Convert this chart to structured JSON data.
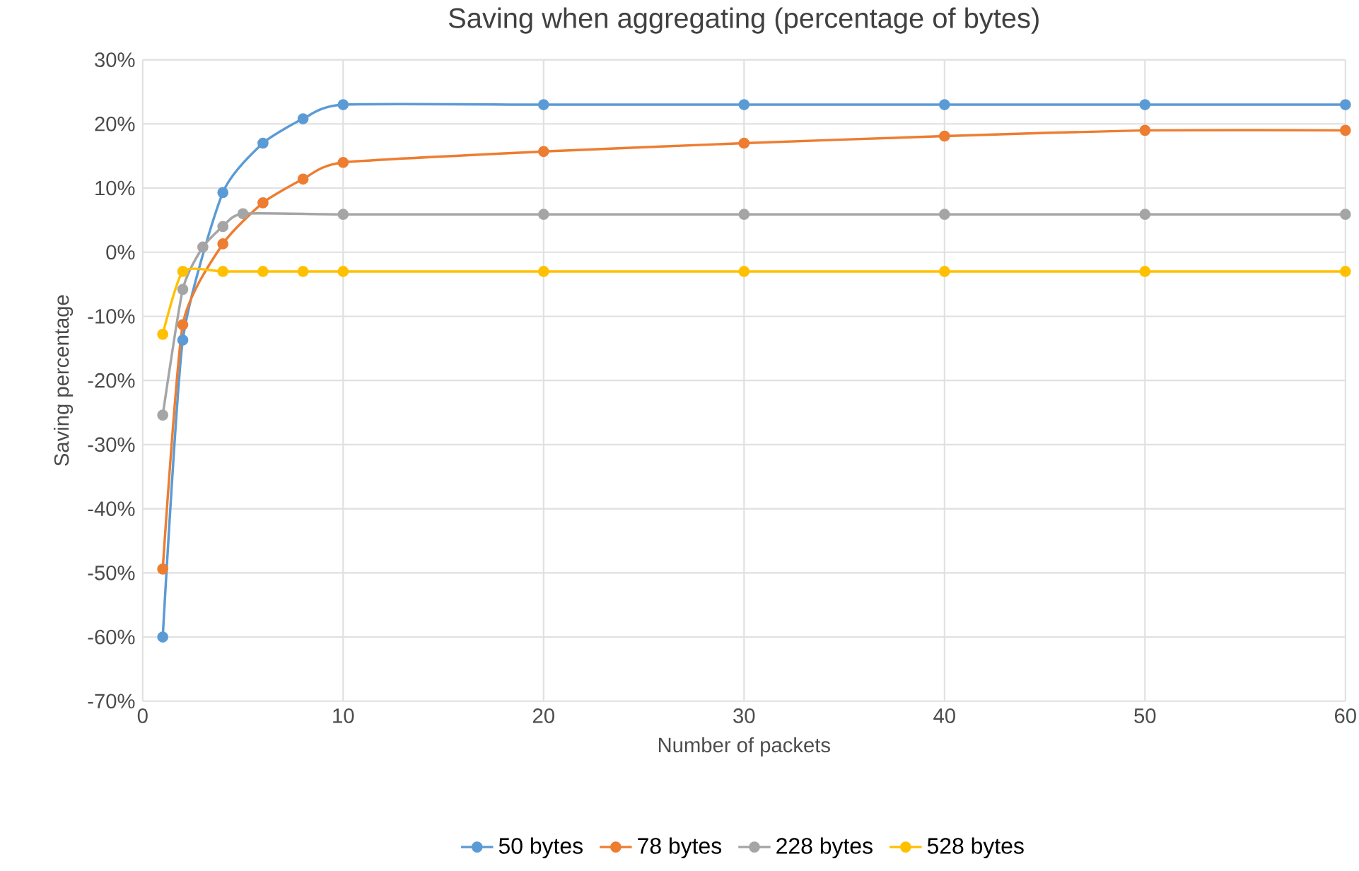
{
  "chart_data": {
    "type": "line",
    "title": "Saving when aggregating (percentage of bytes)",
    "xlabel": "Number of packets",
    "ylabel": "Saving percentage",
    "xlim": [
      0,
      60
    ],
    "xticks": [
      0,
      10,
      20,
      30,
      40,
      50,
      60
    ],
    "ylim": [
      -70,
      30
    ],
    "yticks": [
      {
        "value": -70,
        "label": "-70%"
      },
      {
        "value": -60,
        "label": "-60%"
      },
      {
        "value": -50,
        "label": "-50%"
      },
      {
        "value": -40,
        "label": "-40%"
      },
      {
        "value": -30,
        "label": "-30%"
      },
      {
        "value": -20,
        "label": "-20%"
      },
      {
        "value": -10,
        "label": "-10%"
      },
      {
        "value": 0,
        "label": "0%"
      },
      {
        "value": 10,
        "label": "10%"
      },
      {
        "value": 20,
        "label": "20%"
      },
      {
        "value": 30,
        "label": "30%"
      }
    ],
    "grid": true,
    "legend": "bottom",
    "marker": "circle",
    "series": [
      {
        "name": "50 bytes",
        "color": "#5b9bd5",
        "x": [
          1,
          2,
          4,
          6,
          8,
          10,
          20,
          30,
          40,
          50,
          60
        ],
        "values": [
          -60,
          -13.7,
          9.3,
          17,
          20.8,
          23,
          23,
          23,
          23,
          23,
          23
        ]
      },
      {
        "name": "78 bytes",
        "color": "#ed7d31",
        "x": [
          1,
          2,
          4,
          6,
          8,
          10,
          20,
          30,
          40,
          50,
          60
        ],
        "values": [
          -49.4,
          -11.3,
          1.3,
          7.7,
          11.4,
          14,
          15.7,
          17,
          18.1,
          19,
          19
        ]
      },
      {
        "name": "228 bytes",
        "color": "#a5a5a5",
        "x": [
          1,
          2,
          3,
          4,
          5,
          10,
          20,
          30,
          40,
          50,
          60
        ],
        "values": [
          -25.4,
          -5.8,
          0.8,
          4,
          6,
          5.9,
          5.9,
          5.9,
          5.9,
          5.9,
          5.9
        ]
      },
      {
        "name": "528 bytes",
        "color": "#ffc000",
        "x": [
          1,
          2,
          4,
          6,
          8,
          10,
          20,
          30,
          40,
          50,
          60
        ],
        "values": [
          -12.8,
          -3,
          -3,
          -3,
          -3,
          -3,
          -3,
          -3,
          -3,
          -3,
          -3
        ]
      }
    ]
  }
}
